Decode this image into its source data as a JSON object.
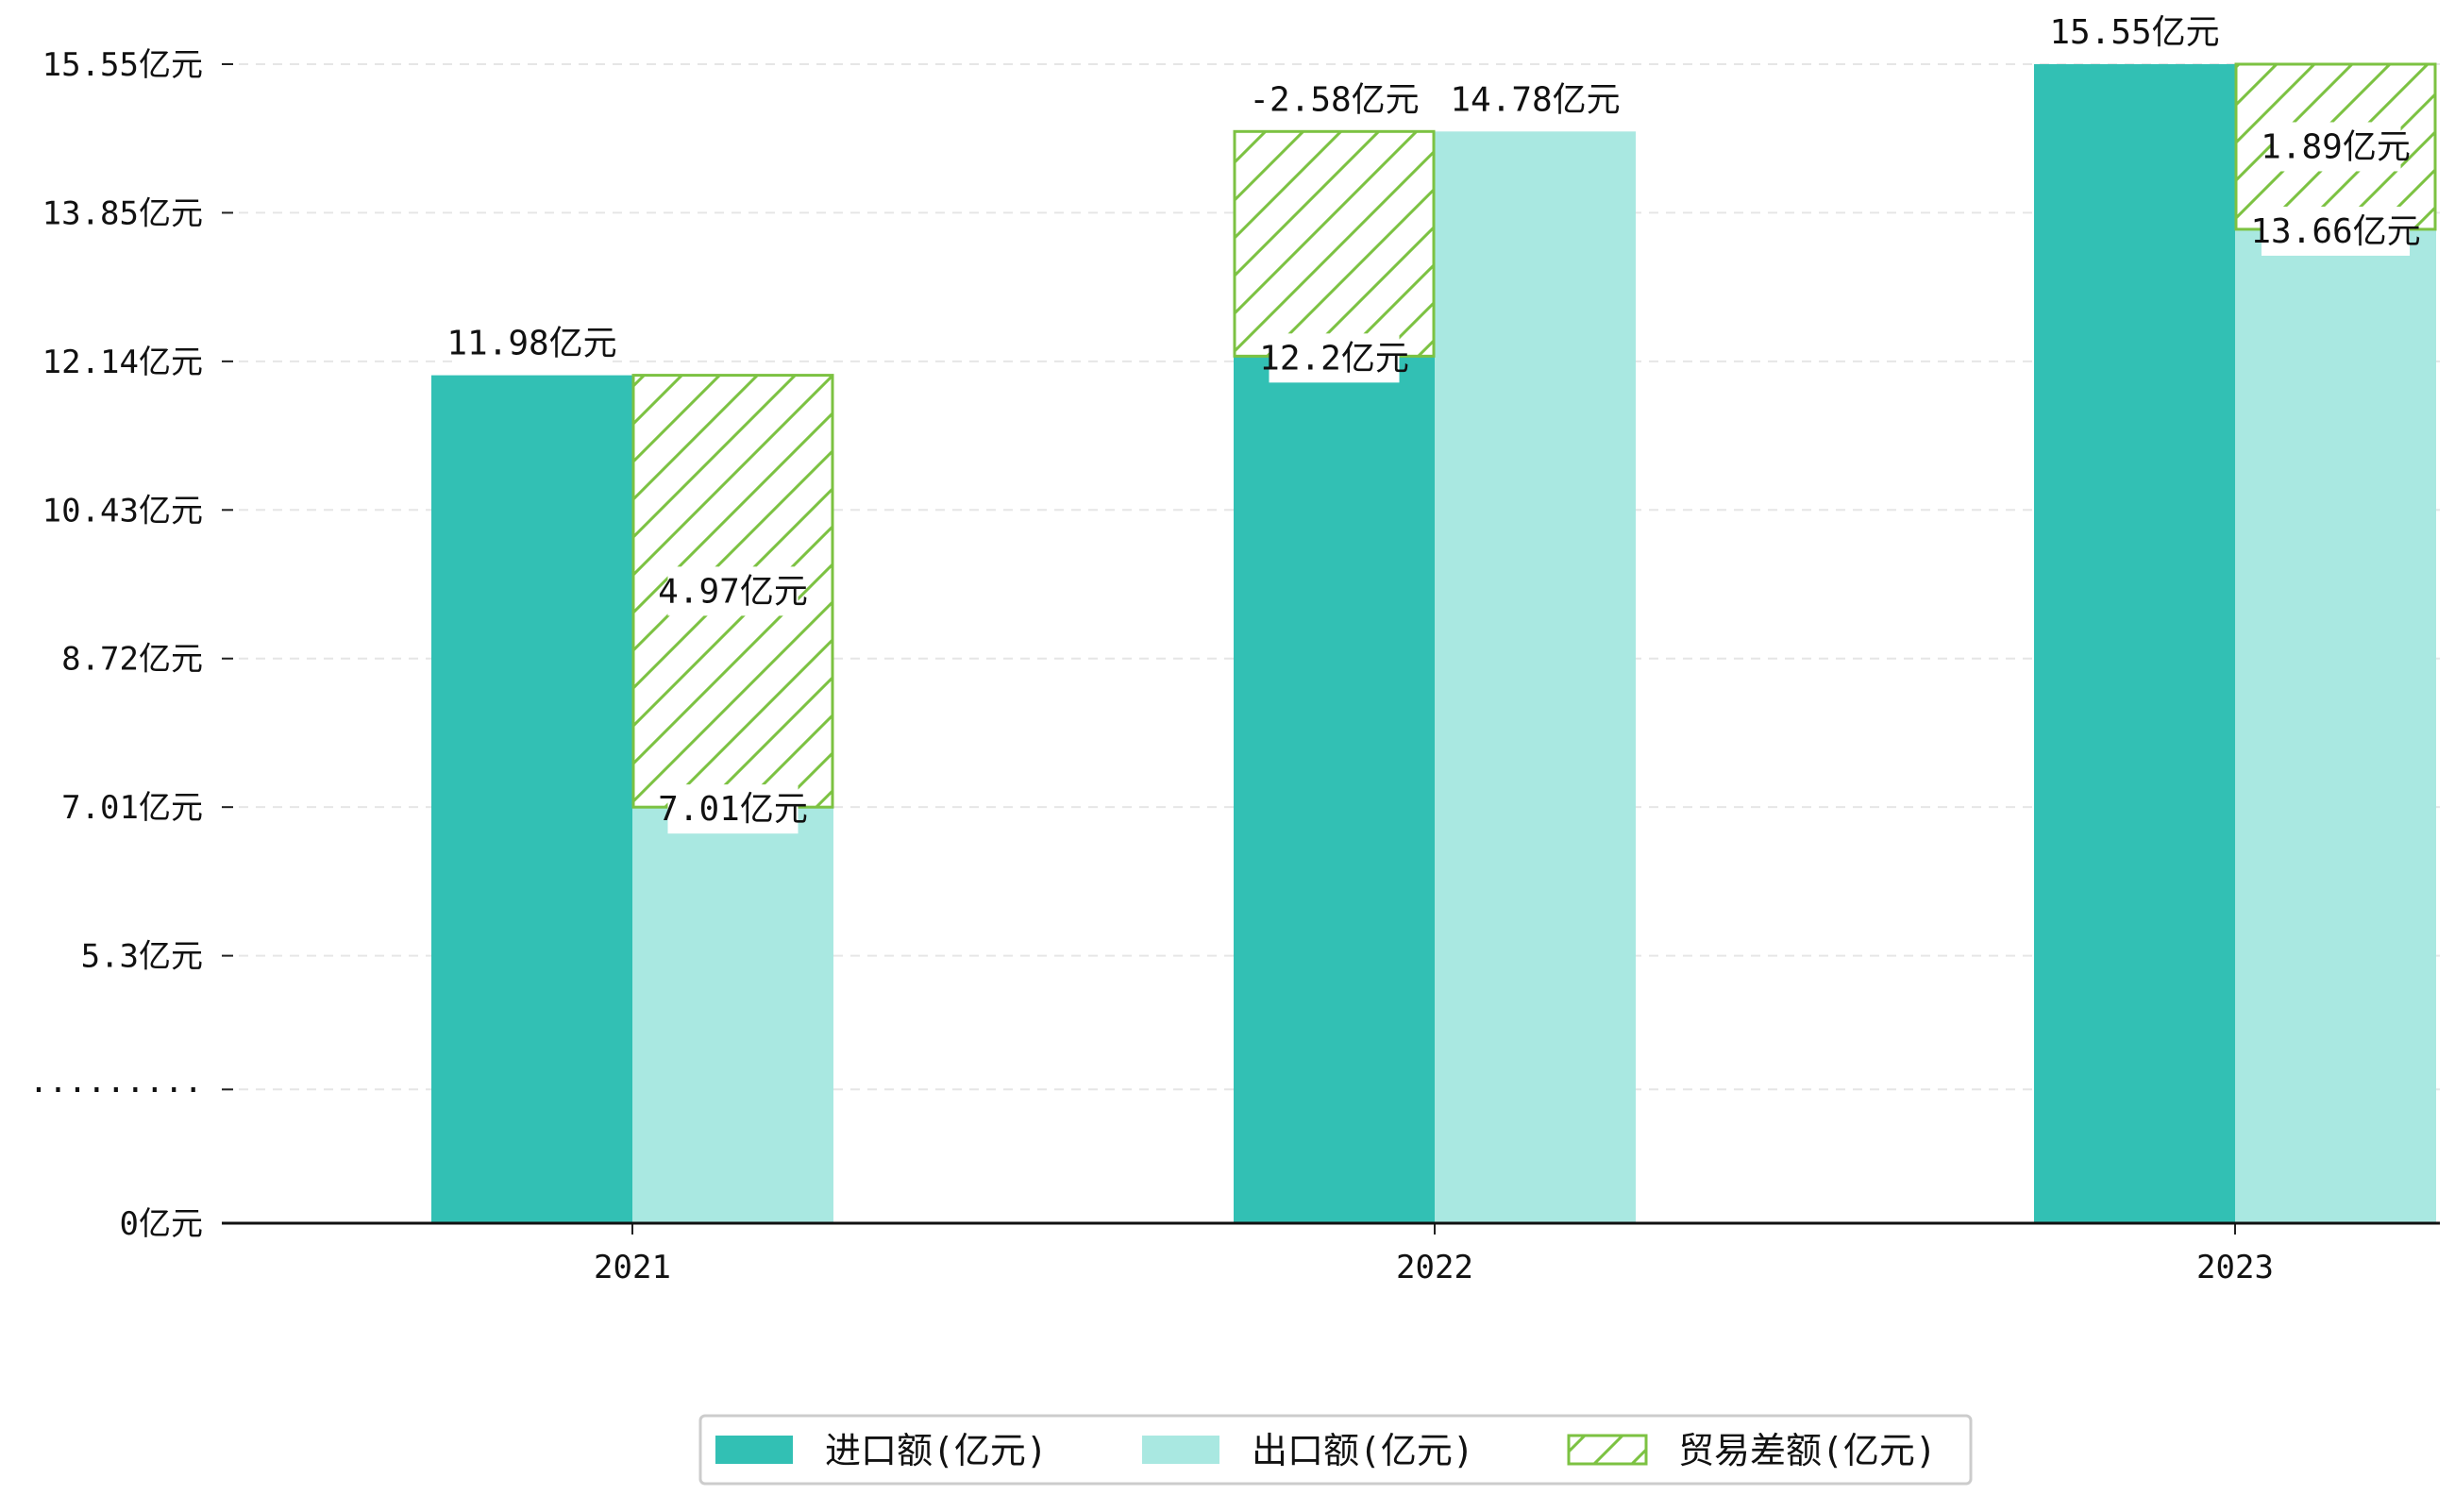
{
  "chart_data": {
    "type": "bar",
    "categories": [
      "2021",
      "2022",
      "2023"
    ],
    "series": [
      {
        "name": "进口额(亿元)",
        "values": [
          11.98,
          12.2,
          15.55
        ],
        "labels": [
          "11.98亿元",
          "12.2亿元",
          "15.55亿元"
        ],
        "color": "#32C0B4"
      },
      {
        "name": "出口额(亿元)",
        "values": [
          7.01,
          14.78,
          13.66
        ],
        "labels": [
          "7.01亿元",
          "14.78亿元",
          "13.66亿元"
        ],
        "color": "#A9E8E1"
      },
      {
        "name": "贸易差额(亿元)",
        "values": [
          4.97,
          -2.58,
          1.89
        ],
        "labels": [
          "4.97亿元",
          "-2.58亿元",
          "1.89亿元"
        ],
        "color": "#7CC242",
        "style": "hatched"
      }
    ],
    "y_ticks": [
      {
        "value": 0,
        "label": "0亿元"
      },
      {
        "value": 1.8,
        "label": "·········"
      },
      {
        "value": 3.6,
        "label": "5.3亿元"
      },
      {
        "value": 5.6,
        "label": "7.01亿元"
      },
      {
        "value": 7.6,
        "label": "8.72亿元"
      },
      {
        "value": 9.6,
        "label": "10.43亿元"
      },
      {
        "value": 11.6,
        "label": "12.14亿元"
      },
      {
        "value": 13.6,
        "label": "13.85亿元"
      },
      {
        "value": 15.6,
        "label": "15.55亿元"
      }
    ],
    "axis_break": true,
    "grid": "horizontal-dashed",
    "legend_position": "bottom-center",
    "title": "",
    "xlabel": "",
    "ylabel": ""
  }
}
